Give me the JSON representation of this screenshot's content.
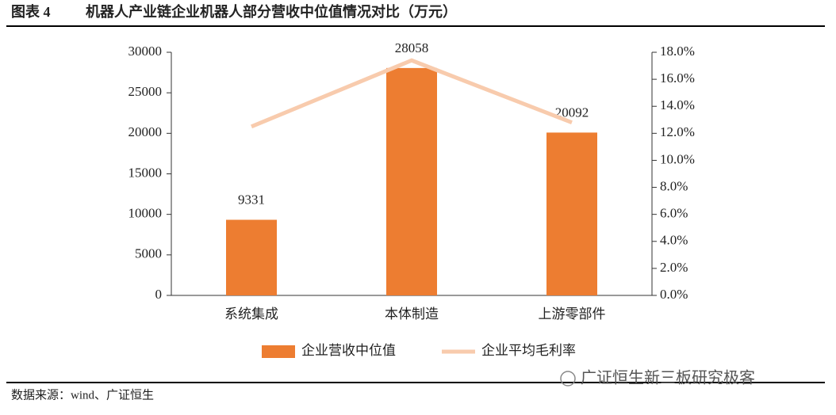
{
  "chart_data": {
    "type": "bar_line",
    "figure_label": "图表 4",
    "title": "机器人产业链企业机器人部分营收中位值情况对比（万元）",
    "source": "数据来源：wind、广证恒生",
    "watermark": "广证恒生新三板研究极客",
    "categories": [
      "系统集成",
      "本体制造",
      "上游零部件"
    ],
    "series": [
      {
        "name": "企业营收中位值",
        "type": "bar",
        "color": "#ed7d31",
        "values": [
          9331,
          28058,
          20092
        ],
        "show_labels": true
      },
      {
        "name": "企业平均毛利率",
        "type": "line",
        "color": "#f8cbad",
        "axis": "y2",
        "values": [
          12.5,
          17.4,
          12.8
        ]
      }
    ],
    "ylim": [
      0,
      30000
    ],
    "yticks": [
      0,
      5000,
      10000,
      15000,
      20000,
      25000,
      30000
    ],
    "y2lim": [
      0,
      18
    ],
    "y2ticks": [
      {
        "value": 0,
        "label": "0.0%"
      },
      {
        "value": 2,
        "label": "2.0%"
      },
      {
        "value": 4,
        "label": "4.0%"
      },
      {
        "value": 6,
        "label": "6.0%"
      },
      {
        "value": 8,
        "label": "8.0%"
      },
      {
        "value": 10,
        "label": "10.0%"
      },
      {
        "value": 12,
        "label": "12.0%"
      },
      {
        "value": 14,
        "label": "14.0%"
      },
      {
        "value": 16,
        "label": "16.0%"
      },
      {
        "value": 18,
        "label": "18.0%"
      }
    ],
    "legend": "bottom"
  }
}
